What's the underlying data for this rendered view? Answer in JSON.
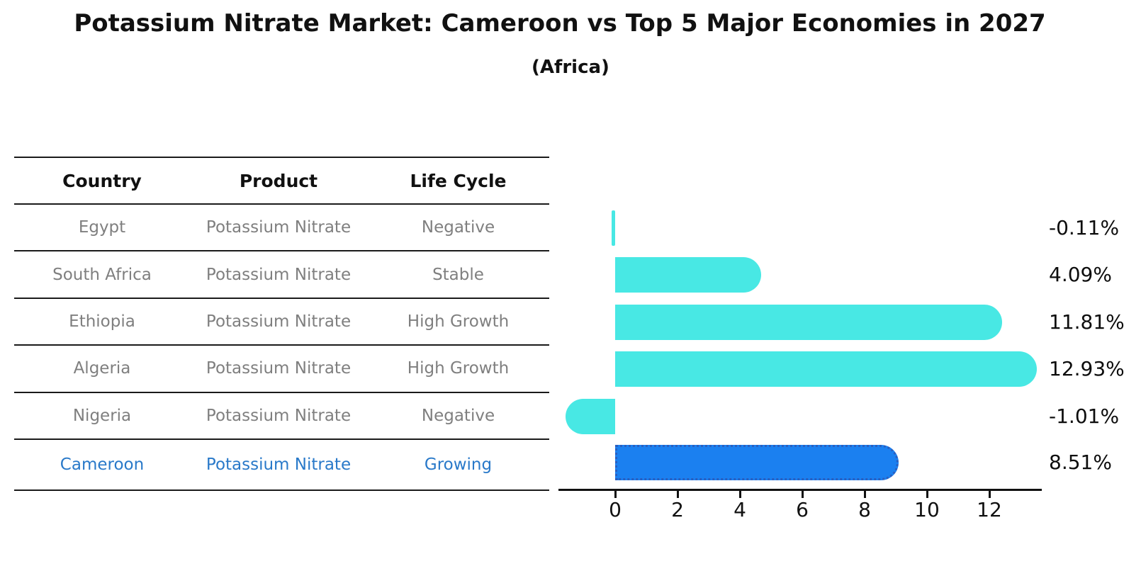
{
  "title": "Potassium Nitrate Market: Cameroon vs Top 5 Major Economies in 2027",
  "subtitle": "(Africa)",
  "table": {
    "columns": [
      "Country",
      "Product",
      "Life Cycle"
    ],
    "rows": [
      {
        "country": "Egypt",
        "product": "Potassium Nitrate",
        "life_cycle": "Negative",
        "highlight": false
      },
      {
        "country": "South Africa",
        "product": "Potassium Nitrate",
        "life_cycle": "Stable",
        "highlight": false
      },
      {
        "country": "Ethiopia",
        "product": "Potassium Nitrate",
        "life_cycle": "High Growth",
        "highlight": false
      },
      {
        "country": "Algeria",
        "product": "Potassium Nitrate",
        "life_cycle": "High Growth",
        "highlight": false
      },
      {
        "country": "Nigeria",
        "product": "Potassium Nitrate",
        "life_cycle": "Negative",
        "highlight": false
      },
      {
        "country": "Cameroon",
        "product": "Potassium Nitrate",
        "life_cycle": "Growing",
        "highlight": true
      }
    ]
  },
  "chart_data": {
    "type": "bar",
    "orientation": "horizontal",
    "title": "Potassium Nitrate Market: Cameroon vs Top 5 Major Economies in 2027 (Africa)",
    "categories": [
      "Egypt",
      "South Africa",
      "Ethiopia",
      "Algeria",
      "Nigeria",
      "Cameroon"
    ],
    "values": [
      -0.11,
      4.09,
      11.81,
      12.93,
      -1.01,
      8.51
    ],
    "value_labels": [
      "-0.11%",
      "4.09%",
      "11.81%",
      "12.93%",
      "-1.01%",
      "8.51%"
    ],
    "x_ticks": [
      0,
      2,
      4,
      6,
      8,
      10,
      12
    ],
    "xlim": [
      -1.8,
      13.7
    ],
    "grid": false,
    "legend": false,
    "highlight_index": 5,
    "bar_color": "#48E8E4",
    "highlight_color": "#1B80F0",
    "highlight_border_color": "#2a5fc0"
  },
  "colors": {
    "highlight_text": "#2979c9",
    "table_text": "#7f7f7f",
    "axis": "#111111"
  }
}
